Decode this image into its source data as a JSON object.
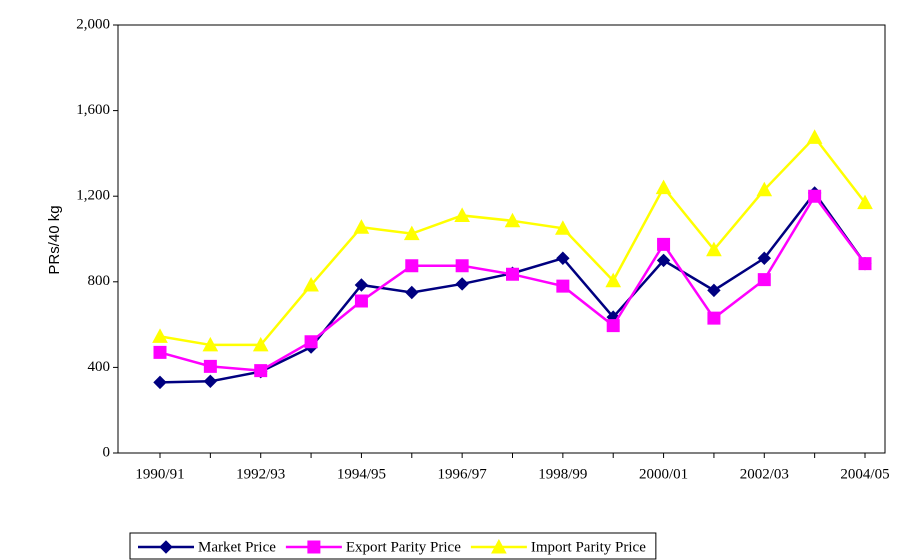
{
  "chart_data": {
    "type": "line",
    "y_label": "PRs/40 kg",
    "categories": [
      "1990/91",
      null,
      "1992/93",
      null,
      "1994/95",
      null,
      "1996/97",
      null,
      "1998/99",
      null,
      "2000/01",
      null,
      "2002/03",
      null,
      "2004/05"
    ],
    "series": [
      {
        "name": "Market Price",
        "color": "#000080",
        "marker": "diamond",
        "values": [
          330,
          335,
          380,
          495,
          785,
          750,
          790,
          840,
          910,
          635,
          900,
          760,
          910,
          1215,
          885
        ]
      },
      {
        "name": "Export Parity Price",
        "color": "#ff00ff",
        "marker": "square",
        "values": [
          470,
          405,
          385,
          520,
          710,
          875,
          875,
          835,
          780,
          595,
          975,
          630,
          810,
          1200,
          885
        ]
      },
      {
        "name": "Import Parity Price",
        "color": "#ffff00",
        "marker": "triangle",
        "values": [
          545,
          505,
          505,
          785,
          1055,
          1025,
          1110,
          1085,
          1050,
          805,
          1240,
          950,
          1230,
          1475,
          1170
        ]
      }
    ],
    "ylim": [
      0,
      2000
    ],
    "yticks": [
      0,
      400,
      800,
      {
        "value": 1200,
        "label": "1,200"
      },
      {
        "value": 1600,
        "label": "1,600"
      },
      {
        "value": 2000,
        "label": "2,000"
      }
    ],
    "legend": "bottom"
  }
}
